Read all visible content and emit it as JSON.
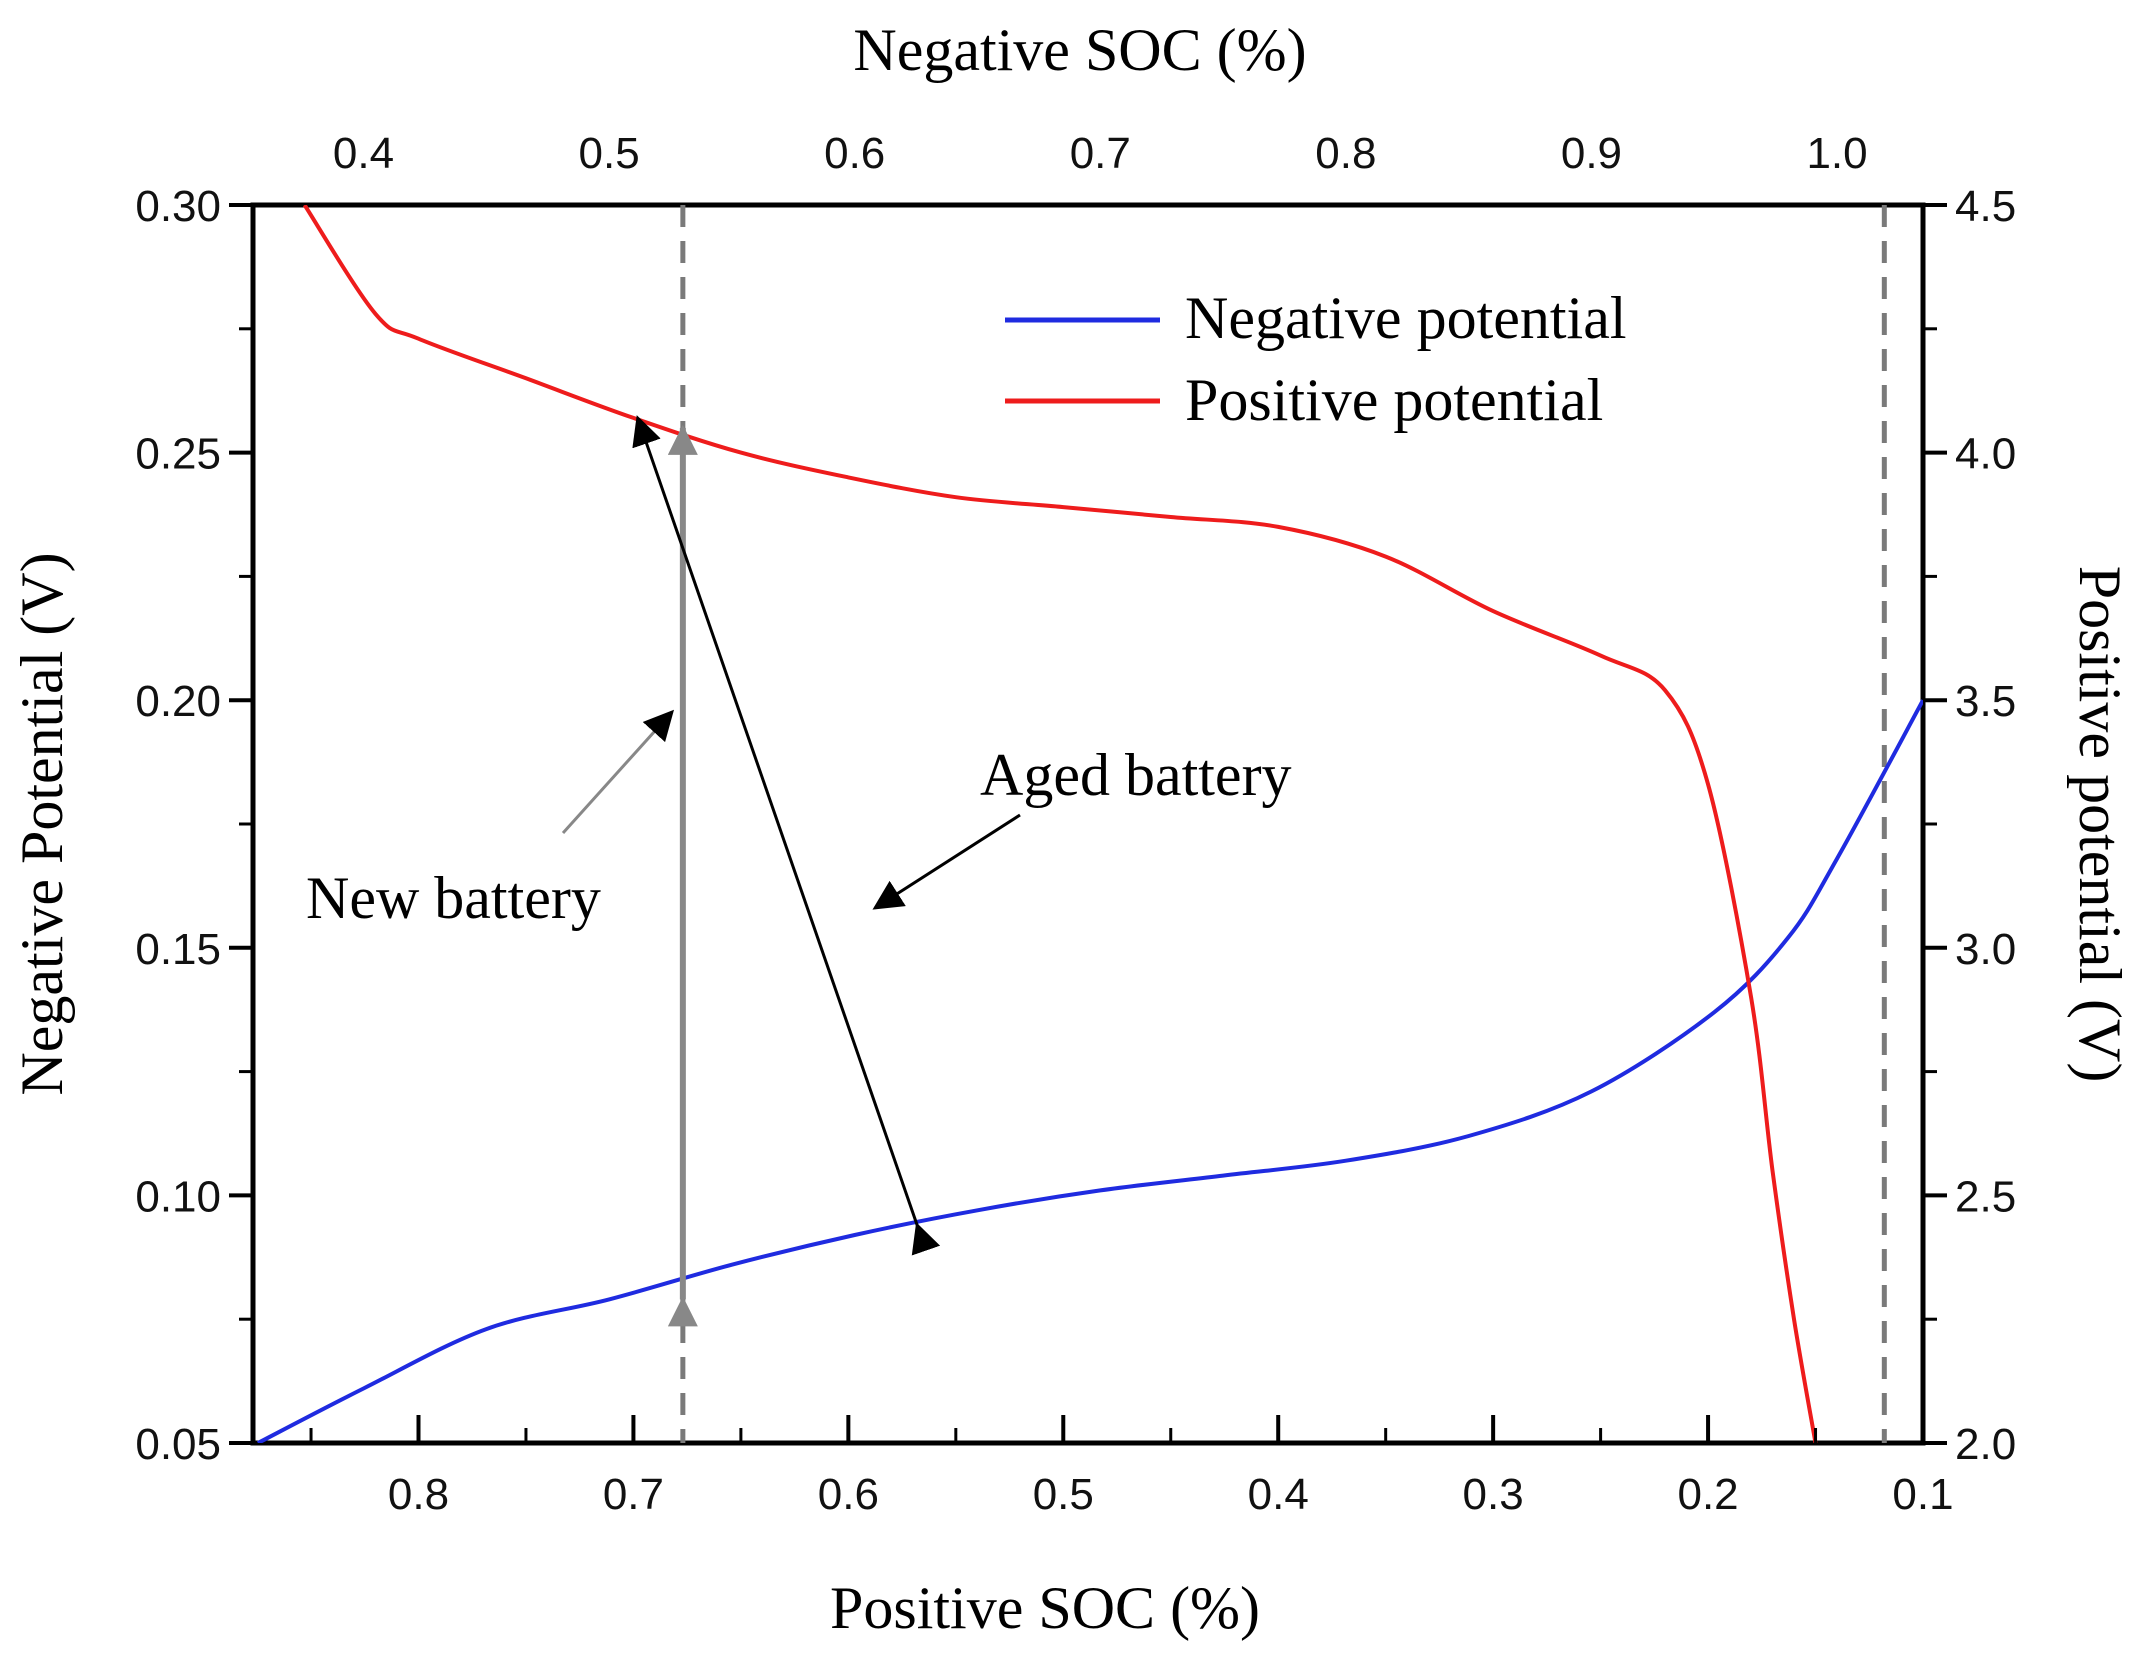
{
  "chart_data": {
    "type": "line",
    "title": "",
    "top_axis": {
      "label": "Negative SOC (%)",
      "range": [
        0.355,
        1.035
      ],
      "ticks": [
        0.4,
        0.5,
        0.6,
        0.7,
        0.8,
        0.9,
        1.0
      ],
      "tick_labels": [
        "0.4",
        "0.5",
        "0.6",
        "0.7",
        "0.8",
        "0.9",
        "1.0"
      ]
    },
    "bottom_axis": {
      "label": "Positive SOC (%)",
      "range": [
        0.877,
        0.1
      ],
      "ticks": [
        0.8,
        0.7,
        0.6,
        0.5,
        0.4,
        0.3,
        0.2,
        0.1
      ],
      "tick_labels": [
        "0.8",
        "0.7",
        "0.6",
        "0.5",
        "0.4",
        "0.3",
        "0.2",
        "0.1"
      ]
    },
    "left_axis": {
      "label": "Negative Potential (V)",
      "range": [
        0.05,
        0.3
      ],
      "ticks": [
        0.05,
        0.1,
        0.15,
        0.2,
        0.25,
        0.3
      ],
      "tick_labels": [
        "0.05",
        "0.10",
        "0.15",
        "0.20",
        "0.25",
        "0.30"
      ]
    },
    "right_axis": {
      "label": "Positive potential (V)",
      "range": [
        2.0,
        4.5
      ],
      "ticks": [
        2.0,
        2.5,
        3.0,
        3.5,
        4.0,
        4.5
      ],
      "tick_labels": [
        "2.0",
        "2.5",
        "3.0",
        "3.5",
        "4.0",
        "4.5"
      ]
    },
    "series": [
      {
        "name": "Negative potential",
        "color": "#1f2be0",
        "x_axis": "top",
        "y_axis": "left",
        "x": [
          0.357,
          0.4,
          0.45,
          0.5,
          0.55,
          0.6,
          0.65,
          0.7,
          0.75,
          0.8,
          0.85,
          0.9,
          0.95,
          0.98,
          1.0,
          1.035
        ],
        "y": [
          0.05,
          0.061,
          0.073,
          0.079,
          0.086,
          0.092,
          0.097,
          0.101,
          0.104,
          0.107,
          0.112,
          0.121,
          0.137,
          0.152,
          0.168,
          0.2
        ]
      },
      {
        "name": "Positive potential",
        "color": "#ee1c1c",
        "x_axis": "bottom",
        "y_axis": "right",
        "x": [
          0.853,
          0.82,
          0.8,
          0.75,
          0.7,
          0.65,
          0.6,
          0.55,
          0.5,
          0.45,
          0.4,
          0.35,
          0.3,
          0.25,
          0.22,
          0.2,
          0.18,
          0.17,
          0.16,
          0.15
        ],
        "y": [
          4.5,
          4.28,
          4.23,
          4.15,
          4.07,
          4.0,
          3.95,
          3.91,
          3.89,
          3.87,
          3.85,
          3.79,
          3.68,
          3.59,
          3.52,
          3.33,
          2.9,
          2.55,
          2.25,
          2.0
        ]
      }
    ],
    "reference_lines": [
      {
        "orientation": "vertical",
        "x_axis": "bottom",
        "x": 0.677,
        "style": "dashed",
        "color": "#7a7a7a"
      },
      {
        "orientation": "vertical",
        "x_axis": "bottom",
        "x": 0.118,
        "style": "dashed",
        "color": "#7a7a7a"
      }
    ],
    "annotations": [
      {
        "text": "New battery",
        "arrow_color": "#888888"
      },
      {
        "text": "Aged battery",
        "arrow_color": "#000000"
      }
    ],
    "arrows": [
      {
        "name": "new-battery-arrow",
        "color": "#888888",
        "x_axis": "bottom",
        "from": [
          0.677,
          0.079
        ],
        "to": [
          0.677,
          0.255
        ],
        "y_axis": "left"
      },
      {
        "name": "aged-battery-arrow",
        "color": "#000000",
        "x_axis": "bottom",
        "from": [
          0.568,
          0.094
        ],
        "to": [
          0.698,
          0.257
        ],
        "y_axis": "left"
      }
    ],
    "legend": {
      "position": "top-right",
      "entries": [
        "Negative potential",
        "Positive potential"
      ]
    },
    "grid": false
  }
}
